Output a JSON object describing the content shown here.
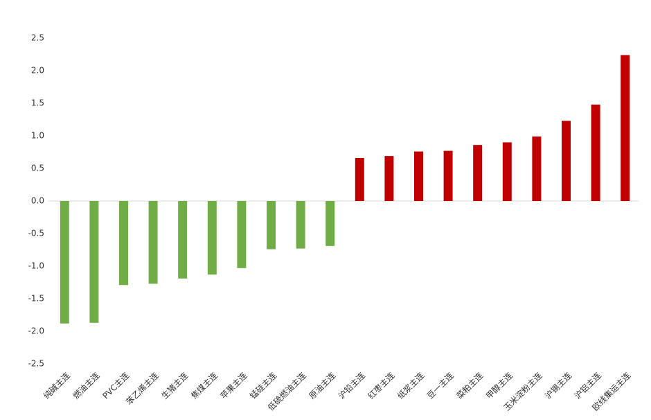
{
  "chart_data": {
    "type": "bar",
    "categories": [
      "纯碱主连",
      "燃油主连",
      "PVC主连",
      "苯乙烯主连",
      "生猪主连",
      "焦煤主连",
      "苹果主连",
      "锰硅主连",
      "低硫燃油主连",
      "原油主连",
      "沪铅主连",
      "红枣主连",
      "纸浆主连",
      "豆一主连",
      "菜粕主连",
      "甲醇主连",
      "玉米淀粉主连",
      "沪锡主连",
      "沪铝主连",
      "欧线集运主连"
    ],
    "values": [
      -1.88,
      -1.87,
      -1.29,
      -1.27,
      -1.19,
      -1.13,
      -1.03,
      -0.74,
      -0.73,
      -0.69,
      0.66,
      0.69,
      0.76,
      0.77,
      0.86,
      0.9,
      0.99,
      1.23,
      1.48,
      2.24
    ],
    "color_positive": "#c00000",
    "color_negative": "#70ad47",
    "ylim": [
      -2.5,
      2.5
    ],
    "yticks": [
      2.5,
      {
        "value": 2,
        "label": "2.0"
      },
      1.5,
      {
        "value": 1,
        "label": "1.0"
      },
      0.5,
      {
        "value": 0,
        "label": "0.0"
      },
      -0.5,
      {
        "value": -1,
        "label": "-1.0"
      },
      -1.5,
      {
        "value": -2,
        "label": "-2.0"
      },
      -2.5
    ]
  }
}
